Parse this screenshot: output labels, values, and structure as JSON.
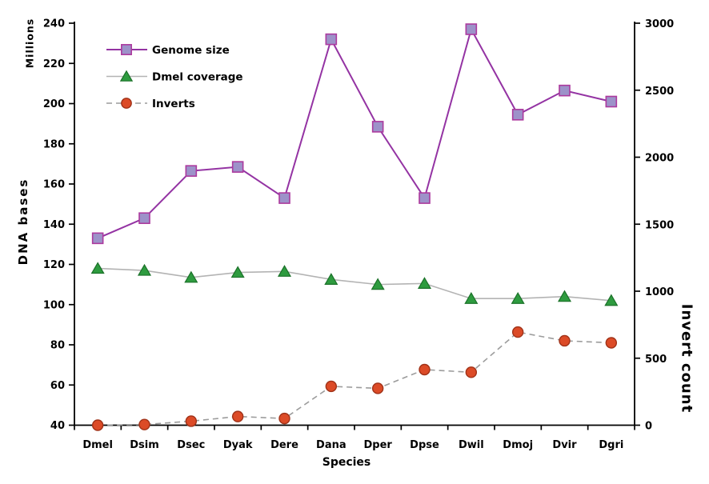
{
  "chart_data": {
    "type": "line",
    "title": "",
    "grid": false,
    "x_axis": {
      "title": "Species",
      "categories": [
        "Dmel",
        "Dsim",
        "Dsec",
        "Dyak",
        "Dere",
        "Dana",
        "Dper",
        "Dpse",
        "Dwil",
        "Dmoj",
        "Dvir",
        "Dgri"
      ]
    },
    "y_axis_left": {
      "title": "DNA bases",
      "unit_label": "Millions",
      "min": 40,
      "max": 240,
      "step": 20,
      "tick_labels": [
        "40",
        "60",
        "80",
        "100",
        "120",
        "140",
        "160",
        "180",
        "200",
        "220",
        "240"
      ]
    },
    "y_axis_right": {
      "title": "Invert count",
      "min": 0,
      "max": 3000,
      "step": 500,
      "tick_labels": [
        "0",
        "500",
        "1000",
        "1500",
        "2000",
        "2500",
        "3000"
      ]
    },
    "legend": {
      "position": "inside-top-left",
      "items": [
        "Genome size",
        "Dmel coverage",
        "Inverts"
      ]
    },
    "series": [
      {
        "name": "Genome size",
        "axis": "left",
        "line_style": "solid",
        "line_color": "#9433A3",
        "marker": "square",
        "marker_fill": "#9D92C9",
        "marker_stroke": "#AC3A9E",
        "values": [
          133,
          143,
          166.5,
          168.5,
          153,
          232,
          188.5,
          153,
          237,
          194.5,
          206.5,
          201
        ]
      },
      {
        "name": "Dmel coverage",
        "axis": "left",
        "line_style": "solid",
        "line_color": "#B3B3B3",
        "marker": "triangle",
        "marker_fill": "#2E9B3F",
        "marker_stroke": "#1B7129",
        "values": [
          118,
          117,
          113.5,
          116,
          116.5,
          112.5,
          110,
          110.5,
          103,
          103,
          104,
          102
        ]
      },
      {
        "name": "Inverts",
        "axis": "right",
        "line_style": "dashed",
        "line_color": "#9C9C9C",
        "marker": "circle",
        "marker_fill": "#DC4B27",
        "marker_stroke": "#A03218",
        "values": [
          0,
          5,
          30,
          65,
          50,
          290,
          275,
          415,
          395,
          695,
          630,
          615
        ]
      }
    ],
    "colors": {
      "axis_line": "#000000",
      "text": "#000000",
      "background": "#FFFFFF"
    }
  }
}
